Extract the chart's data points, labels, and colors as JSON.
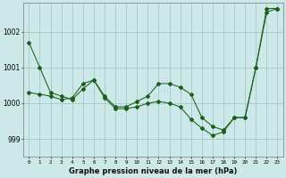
{
  "xlabel": "Graphe pression niveau de la mer (hPa)",
  "x_ticks": [
    0,
    1,
    2,
    3,
    4,
    5,
    6,
    7,
    8,
    9,
    10,
    11,
    12,
    13,
    14,
    15,
    16,
    17,
    18,
    19,
    20,
    21,
    22,
    23
  ],
  "ylim": [
    998.5,
    1002.8
  ],
  "yticks": [
    999,
    1000,
    1001,
    1002
  ],
  "bg_color": "#cde8e8",
  "grid_color": "#aacccc",
  "line_color": "#1a5e1a",
  "series": [
    [
      1001.7,
      1001.0,
      1000.3,
      1000.2,
      1000.1,
      1000.4,
      1000.65,
      1000.15,
      999.85,
      999.85,
      999.9,
      1000.0,
      1000.05,
      1000.0,
      999.9,
      999.55,
      999.3,
      999.1,
      999.2,
      999.6,
      999.6,
      1001.0,
      1002.55,
      1002.65
    ],
    [
      1000.3,
      1000.25,
      1000.2,
      1000.1,
      1000.15,
      1000.55,
      1000.65,
      1000.2,
      999.9,
      999.9,
      1000.05,
      1000.2,
      1000.55,
      1000.55,
      1000.45,
      1000.25,
      999.6,
      999.35,
      999.25,
      999.6,
      999.6,
      1001.0,
      1002.65,
      1002.65
    ]
  ]
}
